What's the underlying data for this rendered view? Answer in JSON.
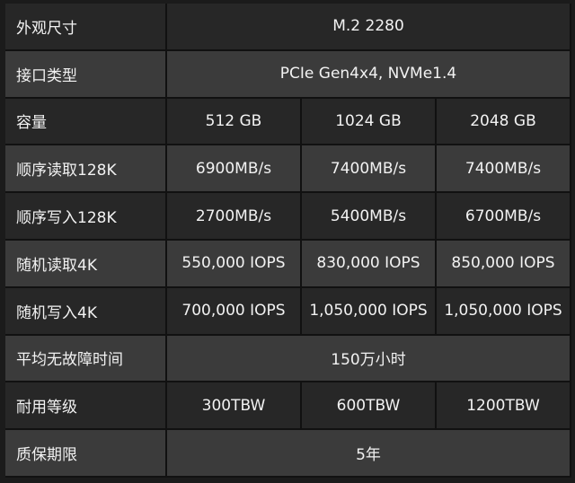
{
  "table": {
    "rows": [
      {
        "label": "外观尺寸",
        "cells": [
          "M.2 2280"
        ]
      },
      {
        "label": "接口类型",
        "cells": [
          "PCIe Gen4x4, NVMe1.4"
        ]
      },
      {
        "label": "容量",
        "cells": [
          "512 GB",
          "1024 GB",
          "2048 GB"
        ]
      },
      {
        "label": "顺序读取128K",
        "cells": [
          "6900MB/s",
          "7400MB/s",
          "7400MB/s"
        ]
      },
      {
        "label": "顺序写入128K",
        "cells": [
          "2700MB/s",
          "5400MB/s",
          "6700MB/s"
        ]
      },
      {
        "label": "随机读取4K",
        "cells": [
          "550,000 IOPS",
          "830,000 IOPS",
          "850,000 IOPS"
        ]
      },
      {
        "label": "随机写入4K",
        "cells": [
          "700,000 IOPS",
          "1,050,000 IOPS",
          "1,050,000 IOPS"
        ]
      },
      {
        "label": "平均无故障时间",
        "cells": [
          "150万小时"
        ]
      },
      {
        "label": "耐用等级",
        "cells": [
          "300TBW",
          "600TBW",
          "1200TBW"
        ]
      },
      {
        "label": "质保期限",
        "cells": [
          "5年"
        ]
      }
    ]
  }
}
